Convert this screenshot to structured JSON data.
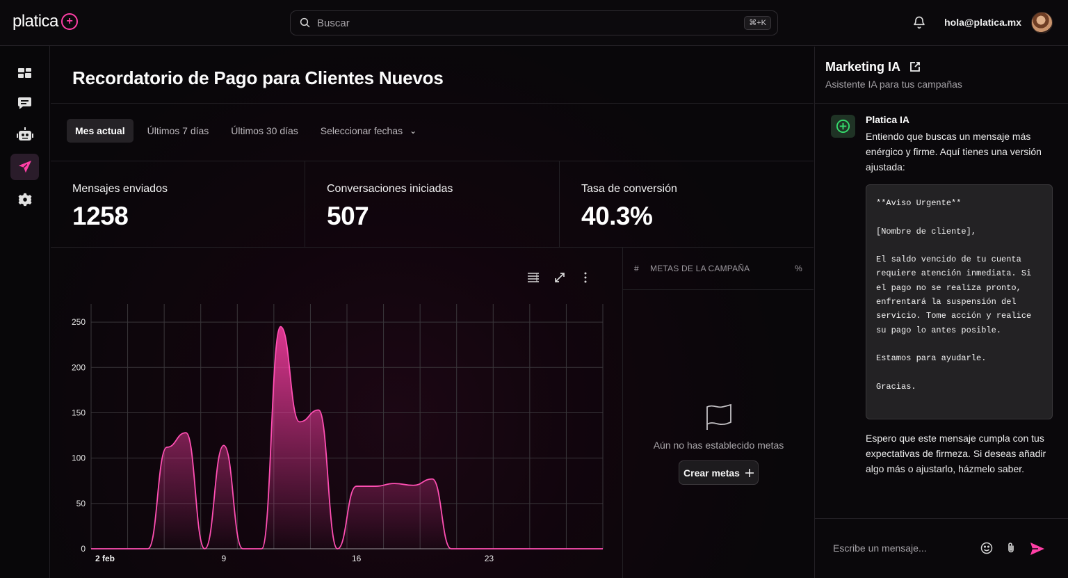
{
  "app": {
    "brand": "platica",
    "brand_mark": "+",
    "user_email": "hola@platica.mx"
  },
  "search": {
    "placeholder": "Buscar",
    "shortcut": "⌘+K"
  },
  "sidebar": {
    "items": [
      {
        "name": "dashboard-icon",
        "active": false
      },
      {
        "name": "messages-icon",
        "active": false
      },
      {
        "name": "robot-icon",
        "active": false
      },
      {
        "name": "send-icon",
        "active": true
      },
      {
        "name": "gear-icon",
        "active": false
      }
    ],
    "accent_color": "#ff3fa6"
  },
  "page": {
    "title": "Recordatorio de Pago para Clientes Nuevos",
    "tabs": [
      "Mes actual",
      "Últimos 7 días",
      "Últimos 30 días",
      "Seleccionar fechas"
    ],
    "active_tab": "Mes actual"
  },
  "stats": [
    {
      "label": "Mensajes enviados",
      "value": "1258"
    },
    {
      "label": "Conversaciones iniciadas",
      "value": "507"
    },
    {
      "label": "Tasa de conversión",
      "value": "40.3%"
    }
  ],
  "chart_data": {
    "type": "area",
    "x_tick_labels": [
      "2 feb",
      "9",
      "16",
      "23"
    ],
    "x": [
      "2 feb",
      "3 feb",
      "4 feb",
      "5 feb",
      "6 feb",
      "7 feb",
      "8 feb",
      "9 feb",
      "10 feb",
      "11 feb",
      "12 feb",
      "13 feb",
      "14 feb",
      "15 feb",
      "16 feb",
      "17 feb",
      "18 feb",
      "19 feb",
      "20 feb",
      "21 feb",
      "22 feb",
      "23 feb",
      "24 feb",
      "25 feb",
      "26 feb",
      "27 feb",
      "28 feb",
      "29 feb"
    ],
    "y": [
      0,
      0,
      0,
      0,
      112,
      128,
      0,
      114,
      0,
      0,
      245,
      140,
      153,
      0,
      69,
      69,
      72,
      70,
      77,
      0,
      0,
      0,
      0,
      0,
      0,
      0,
      0,
      0
    ],
    "yticks": [
      0,
      50,
      100,
      150,
      200,
      250
    ],
    "ylim": [
      0,
      270
    ],
    "grid": true,
    "line_color": "#ff4fb3",
    "fill_color": "#ff3fa6",
    "title": "",
    "xlabel": "",
    "ylabel": ""
  },
  "goals": {
    "columns": [
      "#",
      "METAS DE LA CAMPAÑA",
      "%"
    ],
    "empty_text": "Aún no has establecido metas",
    "create_button": "Crear metas"
  },
  "assistant": {
    "title": "Marketing IA",
    "subtitle": "Asistente IA para tus campañas",
    "bot_name": "Platica IA",
    "message_intro": "Entiendo que buscas un mensaje más enérgico y firme. Aquí tienes una versión ajustada:",
    "code_block": "**Aviso Urgente**\n\n[Nombre de cliente],\n\nEl saldo vencido de tu cuenta requiere atención inmediata. Si el pago no se realiza pronto, enfrentará la suspensión del servicio. Tome acción y realice su pago lo antes posible.\n\nEstamos para ayudarle.\n\nGracias.",
    "message_outro": "Espero que este mensaje cumpla con tus expectativas de firmeza. Si deseas añadir algo más o ajustarlo, házmelo saber.",
    "input_placeholder": "Escribe un mensaje..."
  }
}
